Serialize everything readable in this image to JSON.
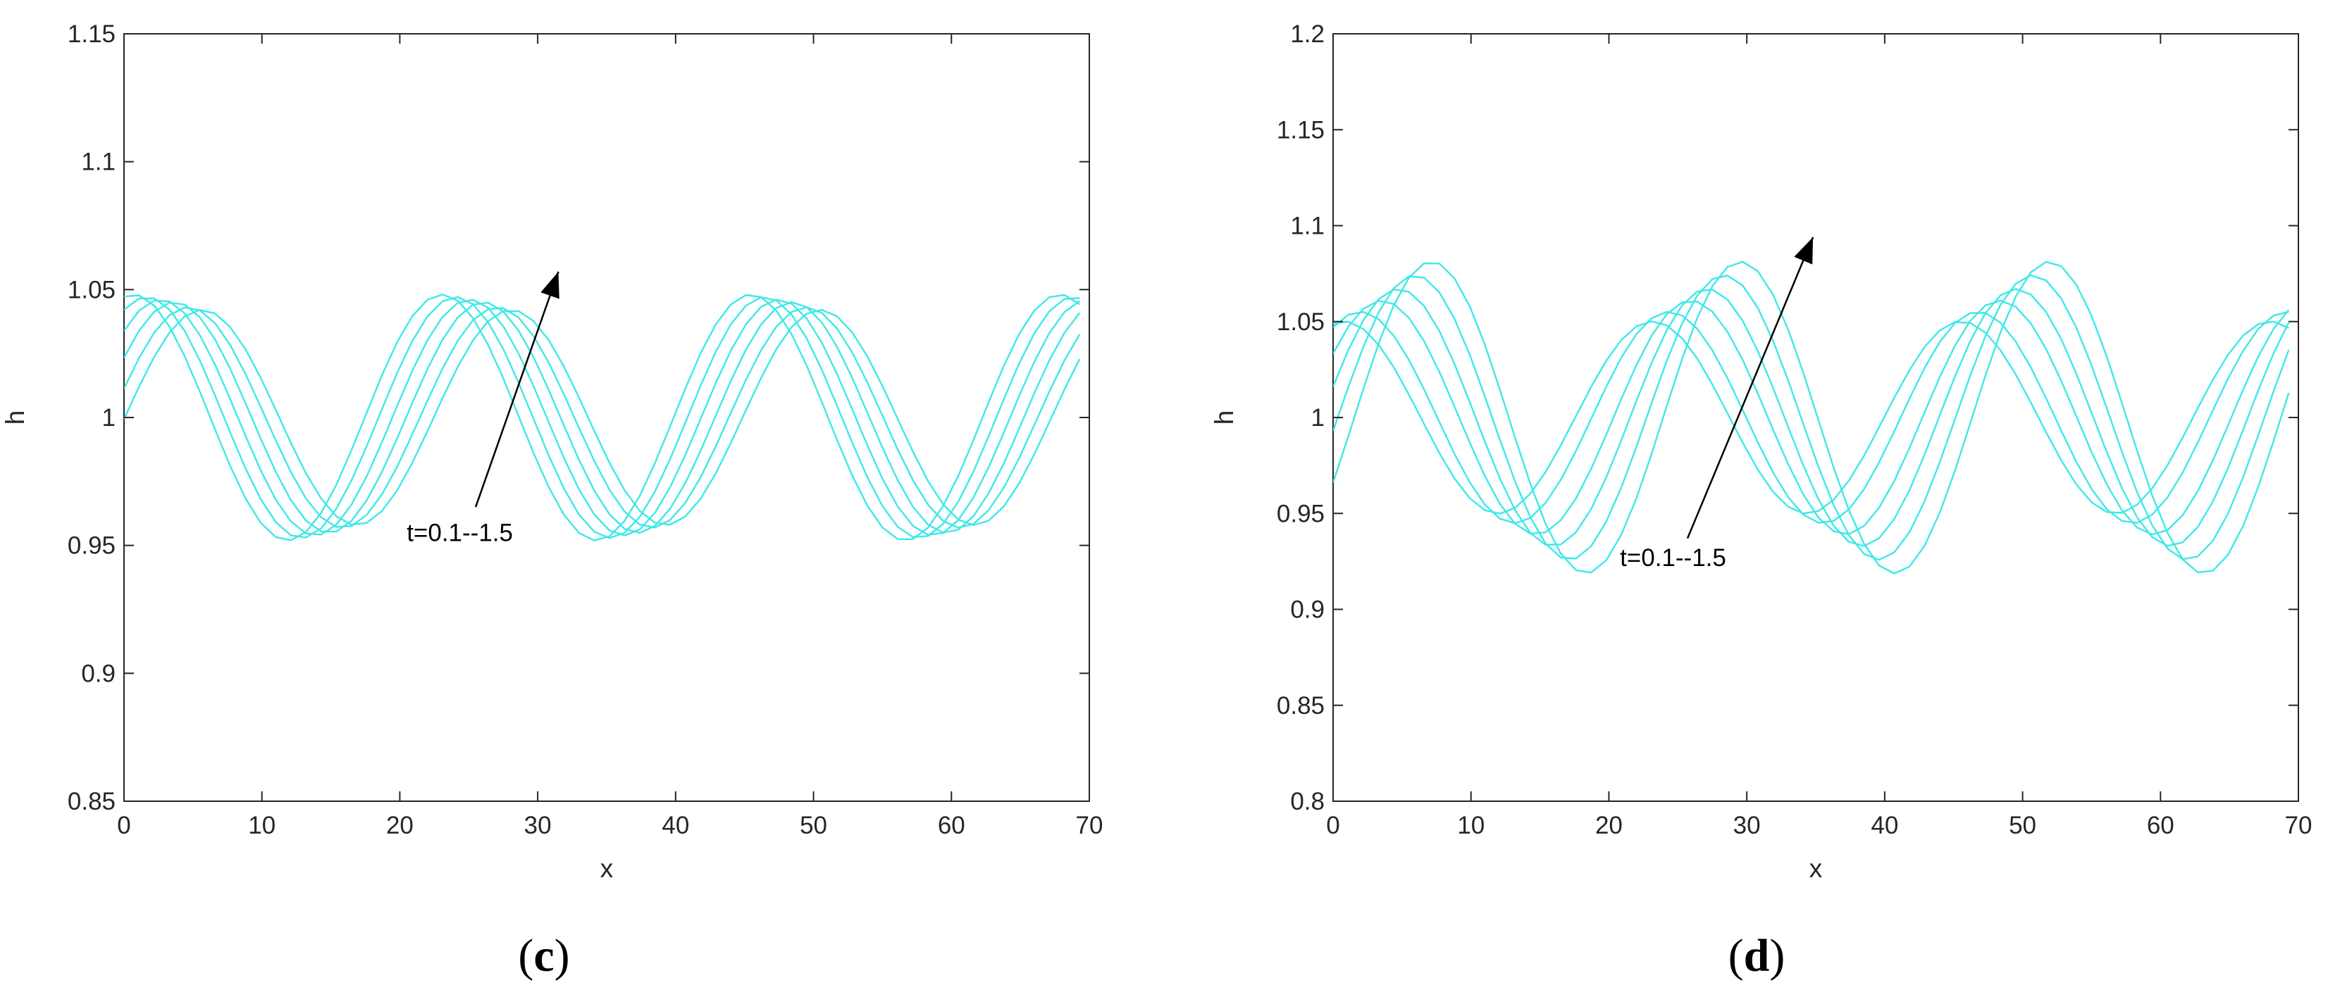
{
  "colors": {
    "series": "#3fe8e8",
    "axis": "#262626",
    "arrow": "#000000"
  },
  "chart_data": [
    {
      "type": "line",
      "caption": "(c)",
      "caption_letter": "c",
      "xlabel": "x",
      "ylabel": "h",
      "xlim": [
        0,
        70
      ],
      "ylim": [
        0.85,
        1.15
      ],
      "xticks": [
        0,
        10,
        20,
        30,
        40,
        50,
        60,
        70
      ],
      "xtick_labels": [
        "0",
        "10",
        "20",
        "30",
        "40",
        "50",
        "60",
        "70"
      ],
      "yticks": [
        0.85,
        0.9,
        0.95,
        1,
        1.05,
        1.1,
        1.15
      ],
      "ytick_labels": [
        "0.85",
        "0.9",
        "0.95",
        "1",
        "1.05",
        "1.1",
        "1.15"
      ],
      "grid": false,
      "annotation": {
        "text": "t=0.1--1.5",
        "text_at": [
          20.5,
          0.955
        ],
        "arrow_from": [
          25.5,
          0.965
        ],
        "arrow_to": [
          31.5,
          1.057
        ]
      },
      "x_step": 1.1,
      "series": [
        {
          "mean": 1.0,
          "amplitude": 0.048,
          "crest_x": [
            0.4,
            22.8,
            45.2,
            67.6
          ],
          "wavelength": 22.4
        },
        {
          "mean": 1.0,
          "amplitude": 0.047,
          "crest_x": [
            1.4,
            23.8,
            46.2,
            68.6
          ],
          "wavelength": 22.4
        },
        {
          "mean": 1.0,
          "amplitude": 0.046,
          "crest_x": [
            2.4,
            24.8,
            47.2,
            69.6
          ],
          "wavelength": 22.4
        },
        {
          "mean": 1.0,
          "amplitude": 0.045,
          "crest_x": [
            3.4,
            25.8,
            48.2
          ],
          "wavelength": 22.4
        },
        {
          "mean": 1.0,
          "amplitude": 0.043,
          "crest_x": [
            4.4,
            26.8,
            49.2
          ],
          "wavelength": 22.4
        },
        {
          "mean": 1.0,
          "amplitude": 0.042,
          "crest_x": [
            5.4,
            27.8,
            50.2
          ],
          "wavelength": 22.4
        }
      ]
    },
    {
      "type": "line",
      "caption": "(d)",
      "caption_letter": "d",
      "xlabel": "x",
      "ylabel": "h",
      "xlim": [
        0,
        70
      ],
      "ylim": [
        0.8,
        1.2
      ],
      "xticks": [
        0,
        10,
        20,
        30,
        40,
        50,
        60,
        70
      ],
      "xtick_labels": [
        "0",
        "10",
        "20",
        "30",
        "40",
        "50",
        "60",
        "70"
      ],
      "yticks": [
        0.8,
        0.85,
        0.9,
        0.95,
        1,
        1.05,
        1.1,
        1.15,
        1.2
      ],
      "ytick_labels": [
        "0.8",
        "0.85",
        "0.9",
        "0.95",
        "1",
        "1.05",
        "1.1",
        "1.15",
        "1.2"
      ],
      "grid": false,
      "annotation": {
        "text": "t=0.1--1.5",
        "text_at": [
          20.8,
          0.927
        ],
        "arrow_from": [
          25.7,
          0.937
        ],
        "arrow_to": [
          34.8,
          1.094
        ]
      },
      "x_step": 1.1,
      "series": [
        {
          "mean": 1.0,
          "amplitude": 0.05,
          "crest_x": [
            0.5,
            22.9,
            45.3,
            67.7
          ],
          "wavelength": 22.4
        },
        {
          "mean": 1.0,
          "amplitude": 0.055,
          "crest_x": [
            1.7,
            24.1,
            46.5,
            68.9
          ],
          "wavelength": 22.4
        },
        {
          "mean": 1.0,
          "amplitude": 0.06,
          "crest_x": [
            2.9,
            25.3,
            47.7
          ],
          "wavelength": 22.4
        },
        {
          "mean": 1.0,
          "amplitude": 0.066,
          "crest_x": [
            4.1,
            26.5,
            48.9
          ],
          "wavelength": 22.4
        },
        {
          "mean": 1.0,
          "amplitude": 0.073,
          "crest_x": [
            5.3,
            27.7,
            50.1
          ],
          "wavelength": 22.4
        },
        {
          "mean": 1.0,
          "amplitude": 0.08,
          "crest_x": [
            6.5,
            28.9,
            51.3
          ],
          "wavelength": 22.4
        }
      ]
    }
  ]
}
